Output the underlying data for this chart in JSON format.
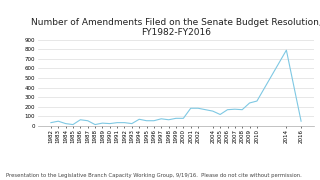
{
  "title": "Number of Amendments Filed on the Senate Budget Resolution,\nFY1982-FY2016",
  "footnote": "Presentation to the Legislative Branch Capacity Working Group, 9/19/16.  Please do not cite without permission.",
  "years": [
    1982,
    1983,
    1984,
    1985,
    1986,
    1987,
    1988,
    1989,
    1990,
    1991,
    1992,
    1993,
    1994,
    1995,
    1996,
    1997,
    1998,
    1999,
    2000,
    2001,
    2002,
    2004,
    2005,
    2006,
    2007,
    2008,
    2009,
    2010,
    2014,
    2016
  ],
  "values": [
    35,
    50,
    25,
    15,
    65,
    55,
    15,
    30,
    25,
    35,
    35,
    25,
    70,
    55,
    55,
    75,
    65,
    80,
    80,
    185,
    185,
    155,
    120,
    170,
    175,
    170,
    240,
    260,
    790,
    50
  ],
  "line_color": "#7EC8E3",
  "bg_color": "#ffffff",
  "grid_color": "#dddddd",
  "ylim": [
    0,
    900
  ],
  "yticks": [
    0,
    100,
    200,
    300,
    400,
    500,
    600,
    700,
    800,
    900
  ],
  "title_fontsize": 6.5,
  "tick_fontsize": 4.0,
  "footnote_fontsize": 3.8
}
